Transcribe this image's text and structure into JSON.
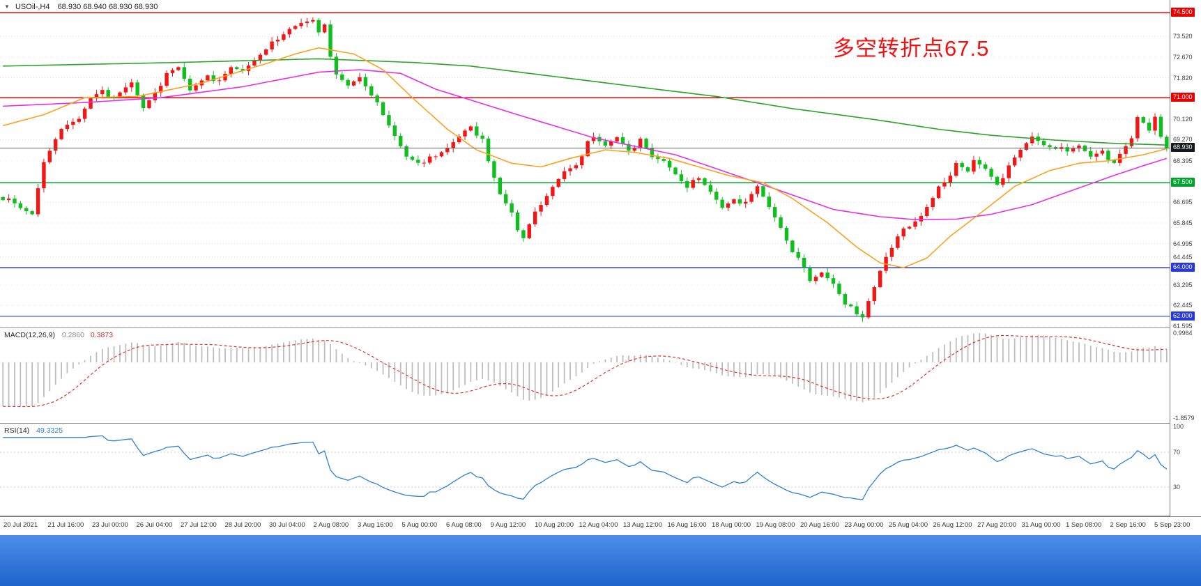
{
  "header": {
    "collapse_icon": "▼",
    "symbol": "USOil-,H4",
    "quote": "68.930 68.940 68.930 68.930"
  },
  "annotation": {
    "text": "多空转折点67.5",
    "color": "#f50f0f"
  },
  "colors": {
    "candle_up": "#f21616",
    "candle_down": "#0fbf1e",
    "grid": "#e0e0e0",
    "current_price_line": "#666666",
    "axis_text": "#3c3c3c",
    "bottom_bar_top": "#4d8fe8",
    "bottom_bar_bottom": "#1f63cc"
  },
  "chart_data": {
    "type": "candlestick",
    "title": "USOil- H4 candlestick chart with MACD and RSI",
    "symbol": "USOil-",
    "timeframe": "H4",
    "price_range": [
      61.54,
      75.02
    ],
    "candles_count": 200,
    "gridlines": [
      {
        "price": 73.52,
        "label": "73.520"
      },
      {
        "price": 72.67,
        "label": "72.670"
      },
      {
        "price": 71.82,
        "label": "71.820"
      },
      {
        "price": 70.12,
        "label": "70.120"
      },
      {
        "price": 69.27,
        "label": "69.270"
      },
      {
        "price": 68.395,
        "label": "68.395"
      },
      {
        "price": 66.695,
        "label": "66.695"
      },
      {
        "price": 65.845,
        "label": "65.845"
      },
      {
        "price": 64.995,
        "label": "64.995"
      },
      {
        "price": 64.445,
        "label": "64.445"
      },
      {
        "price": 63.295,
        "label": "63.295"
      },
      {
        "price": 62.445,
        "label": "62.445"
      },
      {
        "price": 61.595,
        "label": "61.595"
      }
    ],
    "levels": [
      {
        "price": 74.5,
        "label": "74.500",
        "color": "#e80000"
      },
      {
        "price": 71.0,
        "label": "71.000",
        "color": "#e80000"
      },
      {
        "price": 67.5,
        "label": "67.500",
        "color": "#00a32e"
      },
      {
        "price": 64.0,
        "label": "64.000",
        "color": "#2638d8"
      },
      {
        "price": 62.0,
        "label": "62.000",
        "color": "#2638d8"
      }
    ],
    "current_price": {
      "value": 68.93,
      "label": "68.930",
      "badge_color": "#15181c"
    },
    "close_anchors": [
      [
        0,
        66.9
      ],
      [
        3,
        66.4
      ],
      [
        5,
        66.2
      ],
      [
        7,
        68.4
      ],
      [
        9,
        69.4
      ],
      [
        11,
        69.8
      ],
      [
        13,
        70.1
      ],
      [
        15,
        71.0
      ],
      [
        17,
        71.4
      ],
      [
        19,
        70.9
      ],
      [
        22,
        71.6
      ],
      [
        24,
        70.6
      ],
      [
        26,
        71.3
      ],
      [
        28,
        71.9
      ],
      [
        30,
        72.2
      ],
      [
        32,
        71.3
      ],
      [
        35,
        72.0
      ],
      [
        37,
        71.6
      ],
      [
        39,
        72.2
      ],
      [
        41,
        72.1
      ],
      [
        43,
        72.6
      ],
      [
        45,
        73.1
      ],
      [
        47,
        73.3
      ],
      [
        49,
        73.8
      ],
      [
        51,
        74.1
      ],
      [
        53,
        74.28
      ],
      [
        54,
        73.8
      ],
      [
        55,
        73.9
      ],
      [
        56,
        72.6
      ],
      [
        57,
        71.9
      ],
      [
        59,
        71.5
      ],
      [
        61,
        71.9
      ],
      [
        63,
        71.2
      ],
      [
        65,
        70.2
      ],
      [
        67,
        69.4
      ],
      [
        69,
        68.6
      ],
      [
        71,
        68.4
      ],
      [
        74,
        68.5
      ],
      [
        76,
        68.9
      ],
      [
        79,
        69.7
      ],
      [
        80,
        69.9
      ],
      [
        82,
        69.2
      ],
      [
        83,
        68.3
      ],
      [
        85,
        67.0
      ],
      [
        87,
        66.3
      ],
      [
        88,
        65.6
      ],
      [
        89,
        65.3
      ],
      [
        90,
        65.9
      ],
      [
        92,
        66.5
      ],
      [
        94,
        67.3
      ],
      [
        96,
        68.0
      ],
      [
        98,
        68.3
      ],
      [
        100,
        69.1
      ],
      [
        101,
        69.3
      ],
      [
        103,
        69.0
      ],
      [
        105,
        69.4
      ],
      [
        107,
        68.9
      ],
      [
        109,
        69.2
      ],
      [
        111,
        68.5
      ],
      [
        113,
        68.4
      ],
      [
        115,
        67.9
      ],
      [
        117,
        67.4
      ],
      [
        119,
        67.6
      ],
      [
        121,
        67.1
      ],
      [
        123,
        66.5
      ],
      [
        125,
        66.9
      ],
      [
        127,
        66.6
      ],
      [
        129,
        67.3
      ],
      [
        131,
        66.5
      ],
      [
        133,
        65.7
      ],
      [
        134,
        65.2
      ],
      [
        136,
        64.3
      ],
      [
        137,
        63.9
      ],
      [
        138,
        63.4
      ],
      [
        140,
        63.8
      ],
      [
        142,
        63.4
      ],
      [
        143,
        63.0
      ],
      [
        144,
        62.6
      ],
      [
        145,
        62.3
      ],
      [
        146,
        62.0
      ],
      [
        147,
        61.9
      ],
      [
        148,
        62.6
      ],
      [
        149,
        63.2
      ],
      [
        150,
        63.9
      ],
      [
        151,
        64.5
      ],
      [
        152,
        64.9
      ],
      [
        153,
        65.4
      ],
      [
        155,
        65.6
      ],
      [
        157,
        66.1
      ],
      [
        159,
        66.9
      ],
      [
        160,
        67.4
      ],
      [
        161,
        67.6
      ],
      [
        163,
        68.2
      ],
      [
        165,
        67.9
      ],
      [
        166,
        68.4
      ],
      [
        168,
        68.1
      ],
      [
        170,
        67.5
      ],
      [
        172,
        68.1
      ],
      [
        174,
        68.8
      ],
      [
        176,
        69.4
      ],
      [
        178,
        69.1
      ],
      [
        180,
        69.0
      ],
      [
        182,
        68.7
      ],
      [
        184,
        69.0
      ],
      [
        186,
        68.6
      ],
      [
        188,
        68.9
      ],
      [
        190,
        68.2
      ],
      [
        191,
        68.6
      ],
      [
        193,
        69.3
      ],
      [
        194,
        70.2
      ],
      [
        195,
        70.0
      ],
      [
        196,
        69.7
      ],
      [
        197,
        70.3
      ],
      [
        198,
        69.5
      ],
      [
        199,
        68.93
      ]
    ],
    "moving_averages": [
      {
        "name": "ma-slow-green",
        "color": "#28a428",
        "anchors": [
          [
            0,
            72.3
          ],
          [
            30,
            72.45
          ],
          [
            54,
            72.6
          ],
          [
            70,
            72.45
          ],
          [
            80,
            72.3
          ],
          [
            95,
            71.85
          ],
          [
            110,
            71.4
          ],
          [
            122,
            71.05
          ],
          [
            135,
            70.55
          ],
          [
            149,
            70.1
          ],
          [
            160,
            69.7
          ],
          [
            169,
            69.45
          ],
          [
            180,
            69.25
          ],
          [
            190,
            69.12
          ],
          [
            199,
            69.05
          ]
        ]
      },
      {
        "name": "ma-mid-magenta",
        "color": "#e62ee6",
        "anchors": [
          [
            0,
            70.65
          ],
          [
            14,
            70.8
          ],
          [
            27,
            71.0
          ],
          [
            41,
            71.45
          ],
          [
            54,
            72.05
          ],
          [
            61,
            72.15
          ],
          [
            68,
            72.0
          ],
          [
            74,
            71.35
          ],
          [
            88,
            70.3
          ],
          [
            101,
            69.35
          ],
          [
            115,
            68.65
          ],
          [
            129,
            67.5
          ],
          [
            142,
            66.4
          ],
          [
            150,
            66.1
          ],
          [
            156,
            65.98
          ],
          [
            163,
            66.0
          ],
          [
            169,
            66.2
          ],
          [
            176,
            66.6
          ],
          [
            183,
            67.2
          ],
          [
            190,
            67.8
          ],
          [
            195,
            68.2
          ],
          [
            199,
            68.5
          ]
        ]
      },
      {
        "name": "ma-fast-orange",
        "color": "#ffa01e",
        "anchors": [
          [
            0,
            69.85
          ],
          [
            7,
            70.3
          ],
          [
            14,
            71.0
          ],
          [
            23,
            71.05
          ],
          [
            34,
            71.6
          ],
          [
            45,
            72.4
          ],
          [
            50,
            72.8
          ],
          [
            54,
            73.05
          ],
          [
            60,
            72.8
          ],
          [
            65,
            72.15
          ],
          [
            70,
            71.0
          ],
          [
            76,
            69.7
          ],
          [
            81,
            68.85
          ],
          [
            87,
            68.3
          ],
          [
            92,
            68.15
          ],
          [
            97,
            68.5
          ],
          [
            103,
            68.85
          ],
          [
            108,
            68.75
          ],
          [
            114,
            68.5
          ],
          [
            119,
            68.15
          ],
          [
            124,
            67.8
          ],
          [
            130,
            67.5
          ],
          [
            135,
            66.85
          ],
          [
            141,
            65.85
          ],
          [
            146,
            64.85
          ],
          [
            150,
            64.2
          ],
          [
            154,
            64.0
          ],
          [
            158,
            64.4
          ],
          [
            162,
            65.3
          ],
          [
            168,
            66.4
          ],
          [
            173,
            67.35
          ],
          [
            179,
            68.0
          ],
          [
            184,
            68.3
          ],
          [
            189,
            68.4
          ],
          [
            195,
            68.65
          ],
          [
            199,
            68.9
          ]
        ]
      }
    ],
    "time_labels": [
      "20 Jul 2021",
      "21 Jul 16:00",
      "23 Jul 00:00",
      "26 Jul 04:00",
      "27 Jul 12:00",
      "28 Jul 20:00",
      "30 Jul 04:00",
      "2 Aug 08:00",
      "3 Aug 16:00",
      "5 Aug 00:00",
      "6 Aug 08:00",
      "9 Aug 12:00",
      "10 Aug 20:00",
      "12 Aug 04:00",
      "13 Aug 12:00",
      "16 Aug 16:00",
      "18 Aug 00:00",
      "19 Aug 08:00",
      "20 Aug 16:00",
      "23 Aug 00:00",
      "25 Aug 04:00",
      "26 Aug 12:00",
      "27 Aug 20:00",
      "31 Aug 00:00",
      "1 Sep 08:00",
      "2 Sep 16:00",
      "5 Sep 23:00"
    ]
  },
  "macd": {
    "label": "MACD(12,26,9)",
    "value_main": "0.2860",
    "value_signal": "0.3873",
    "axis_top": "0.9964",
    "axis_bottom": "-1.8579",
    "axis_top_value": 0.9964,
    "axis_bottom_value": -1.8579,
    "fast_period": 12,
    "slow_period": 26,
    "signal_period": 9,
    "ema_seed_fast": 68.5,
    "ema_seed_slow": 69.9,
    "histogram_color": "#bdbdbd",
    "signal_color": "#e03232"
  },
  "rsi": {
    "label": "RSI(14)",
    "value": "49.3325",
    "period": 14,
    "line_color": "#2f7ed8",
    "levels": [
      70,
      30
    ],
    "axis_labels": [
      {
        "value": 100,
        "label": "100"
      },
      {
        "value": 70,
        "label": "70"
      },
      {
        "value": 30,
        "label": "30"
      }
    ]
  }
}
